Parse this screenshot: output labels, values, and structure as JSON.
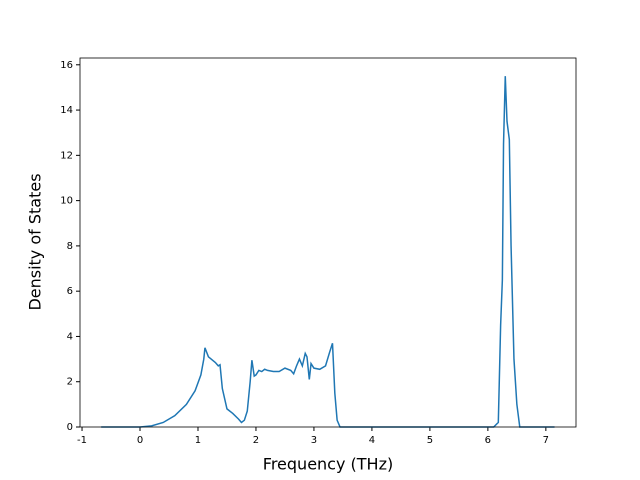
{
  "chart_data": {
    "type": "line",
    "xlabel": "Frequency (THz)",
    "ylabel": "Density of States",
    "x": [
      -0.67,
      0,
      0.2,
      0.4,
      0.6,
      0.8,
      0.95,
      1.05,
      1.1,
      1.12,
      1.18,
      1.3,
      1.35,
      1.38,
      1.42,
      1.5,
      1.6,
      1.7,
      1.75,
      1.8,
      1.85,
      1.9,
      1.93,
      1.97,
      2.0,
      2.05,
      2.1,
      2.15,
      2.2,
      2.3,
      2.4,
      2.5,
      2.6,
      2.65,
      2.7,
      2.75,
      2.8,
      2.85,
      2.88,
      2.92,
      2.95,
      3.0,
      3.1,
      3.2,
      3.27,
      3.32,
      3.36,
      3.4,
      3.45,
      4,
      5,
      6.1,
      6.18,
      6.22,
      6.25,
      6.27,
      6.3,
      6.33,
      6.37,
      6.4,
      6.45,
      6.5,
      6.55,
      7.15
    ],
    "series": [
      {
        "color": "#1f77b4",
        "values": [
          0,
          0,
          0.05,
          0.2,
          0.5,
          1.0,
          1.6,
          2.3,
          3.0,
          3.5,
          3.1,
          2.85,
          2.7,
          2.75,
          1.7,
          0.8,
          0.6,
          0.35,
          0.2,
          0.3,
          0.7,
          2.0,
          2.95,
          2.25,
          2.3,
          2.5,
          2.45,
          2.55,
          2.5,
          2.45,
          2.45,
          2.6,
          2.5,
          2.35,
          2.7,
          3.0,
          2.7,
          3.25,
          3.1,
          2.1,
          2.8,
          2.6,
          2.55,
          2.7,
          3.3,
          3.7,
          1.5,
          0.3,
          0,
          0,
          0,
          0,
          0.2,
          4.5,
          6.5,
          12.5,
          15.5,
          13.5,
          12.7,
          8,
          3,
          1,
          0,
          0
        ]
      }
    ],
    "xlim": [
      -1.035,
      7.52
    ],
    "xticks": [
      -1,
      0,
      1,
      2,
      3,
      4,
      5,
      6,
      7
    ],
    "ylim": [
      0,
      16.3
    ],
    "yticks": [
      0,
      2,
      4,
      6,
      8,
      10,
      12,
      14,
      16
    ]
  }
}
